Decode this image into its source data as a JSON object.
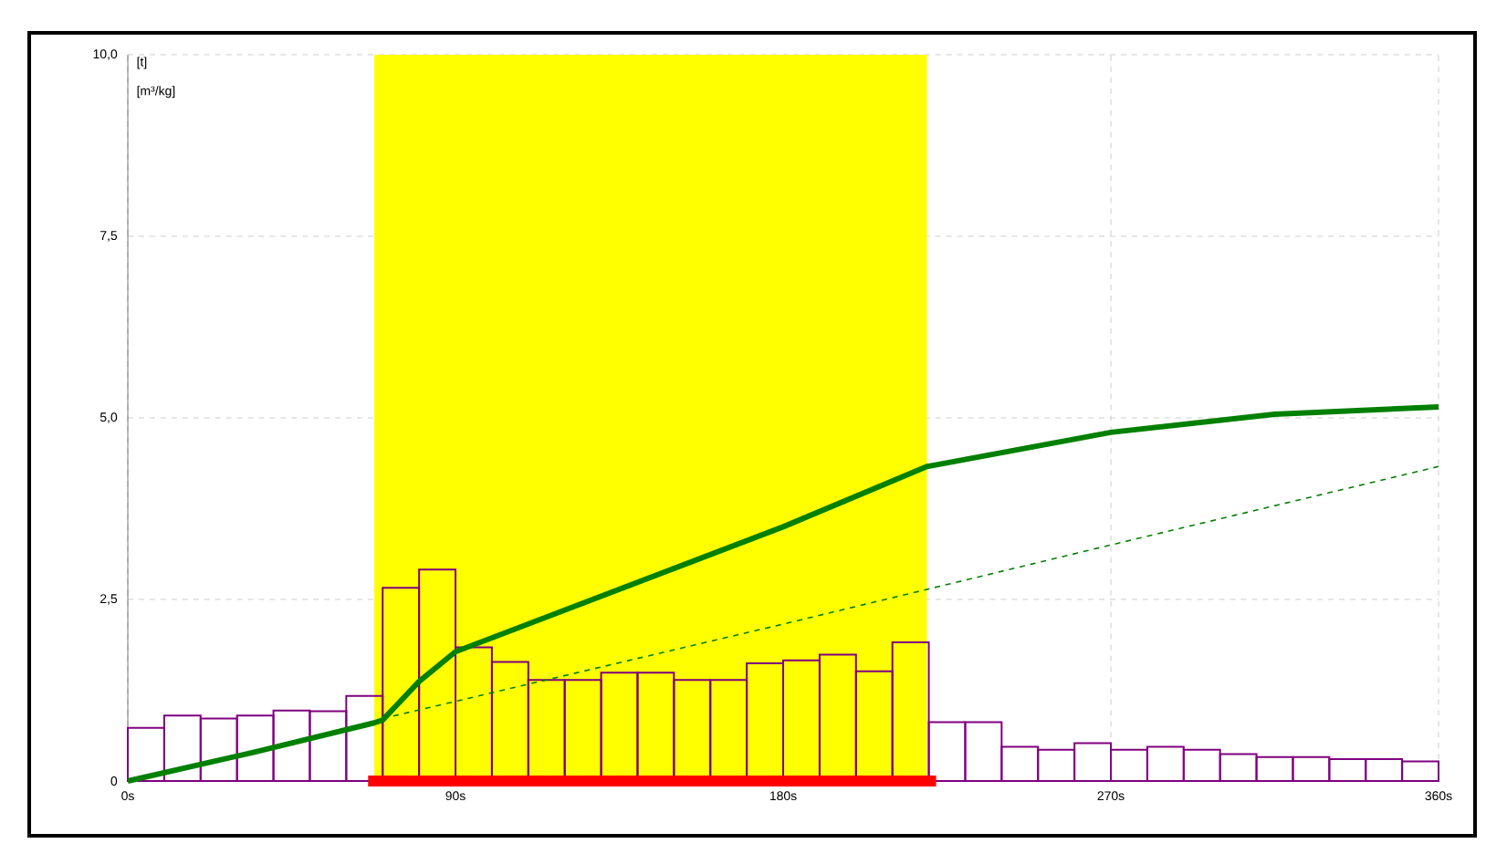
{
  "chart_data": {
    "type": "histogram",
    "bins": [
      0,
      10,
      20,
      30,
      40,
      50,
      60,
      70,
      80,
      90,
      100,
      110,
      120,
      130,
      140,
      150,
      160,
      170,
      180,
      190,
      200,
      210,
      220,
      230,
      240,
      250,
      260,
      270,
      280,
      290,
      300,
      310,
      320,
      330,
      340,
      350,
      360
    ],
    "values": [
      0.73,
      0.9,
      0.86,
      0.9,
      0.97,
      0.96,
      1.17,
      2.66,
      2.91,
      1.84,
      1.64,
      1.39,
      1.39,
      1.49,
      1.49,
      1.39,
      1.39,
      1.62,
      1.66,
      1.74,
      1.51,
      1.91,
      0.81,
      0.81,
      0.47,
      0.43,
      0.52,
      0.43,
      0.47,
      0.43,
      0.37,
      0.33,
      0.33,
      0.3,
      0.3,
      0.27
    ],
    "color": "#800080",
    "series": [
      {
        "type": "line",
        "color": "#ff0000",
        "x": [
          66,
          222
        ],
        "values": [
          0,
          0
        ]
      },
      {
        "type": "line",
        "color": "#008000",
        "line_style": "dashed",
        "x": [
          70,
          180,
          270,
          360
        ],
        "values": [
          0.86,
          2.16,
          3.25,
          4.33
        ]
      },
      {
        "type": "line",
        "color": "#008000",
        "x": [
          0,
          35,
          67.7,
          70,
          80,
          90,
          180,
          219.5,
          270,
          315,
          360
        ],
        "values": [
          0,
          0.4,
          0.8,
          0.84,
          1.37,
          1.78,
          3.5,
          4.33,
          4.8,
          5.05,
          5.15
        ]
      }
    ],
    "bands": [
      {
        "axis": "x",
        "from": 67.7,
        "to": 219.5,
        "color": "#ffff00"
      }
    ],
    "annotations": [
      "[t]",
      "[m³/kg]"
    ],
    "xlim": [
      0,
      360
    ],
    "ylim": [
      0,
      10
    ],
    "xticks": [
      {
        "value": 0,
        "label": "0s"
      },
      {
        "value": 90,
        "label": "90s"
      },
      {
        "value": 180,
        "label": "180s"
      },
      {
        "value": 270,
        "label": "270s"
      },
      {
        "value": 360,
        "label": "360s"
      }
    ],
    "yticks": [
      {
        "value": 0,
        "label": "0"
      },
      {
        "value": 2.5,
        "label": "2,5"
      },
      {
        "value": 5,
        "label": "5,0"
      },
      {
        "value": 7.5,
        "label": "7,5"
      },
      {
        "value": 10,
        "label": "10,0"
      }
    ],
    "grid": true,
    "marker": "none"
  }
}
